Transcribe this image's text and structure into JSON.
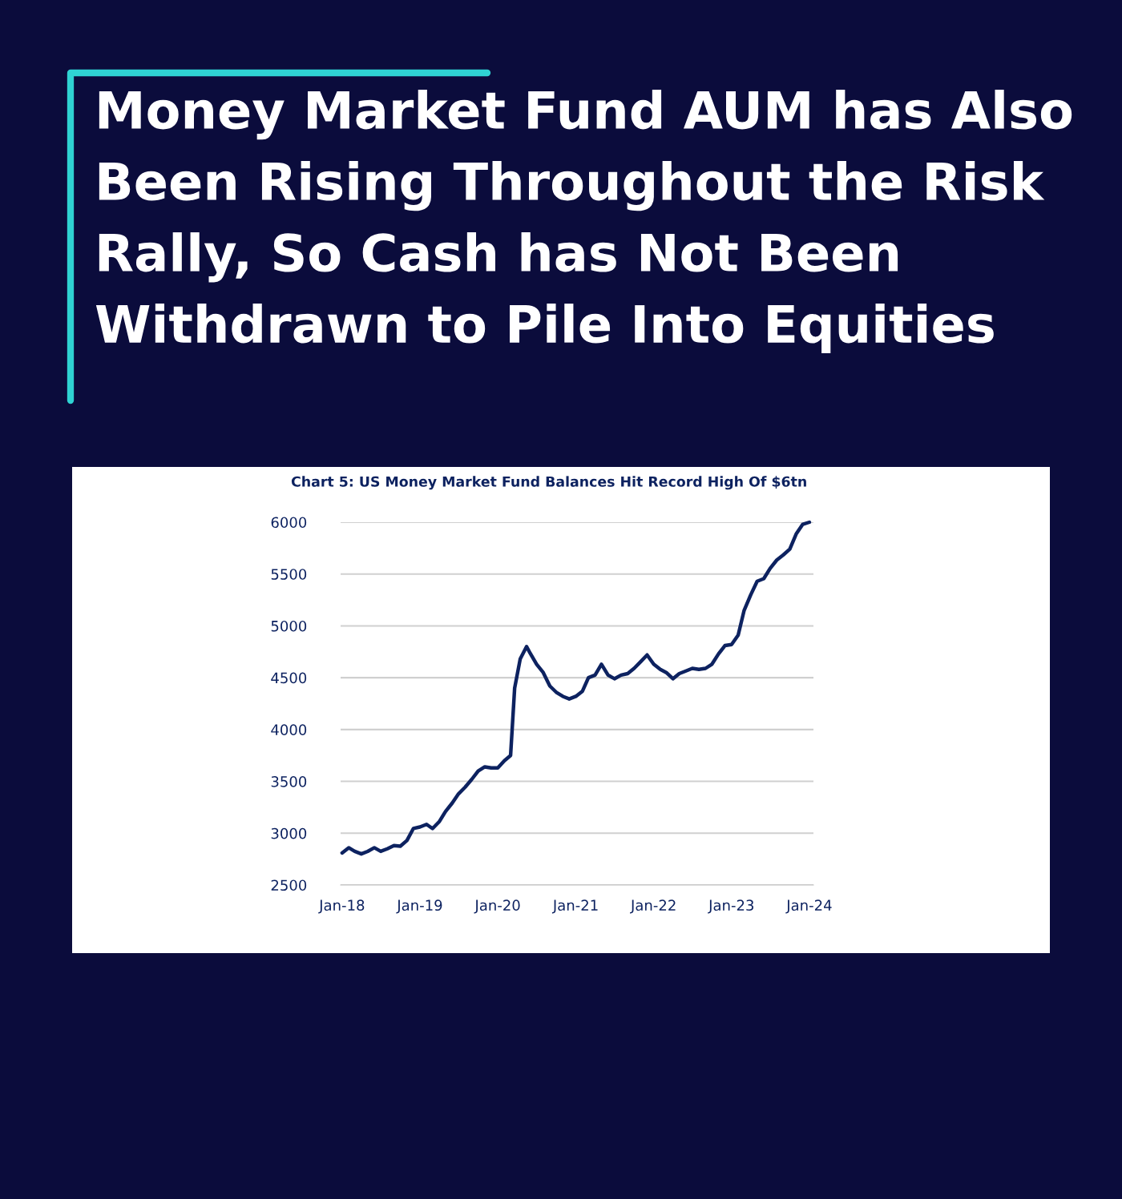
{
  "chart_data": {
    "type": "line",
    "title": "Money Market Fund AUM has Also Been Rising Throughout the Risk Rally, So Cash has Not Been Withdrawn to Pile Into Equities",
    "subtitle": "Chart 5: US Money Market Fund Balances Hit Record High Of $6tn",
    "series": [
      {
        "color": "#0d2260",
        "x": [
          "2018-01",
          "2018-02",
          "2018-03",
          "2018-04",
          "2018-05",
          "2018-06",
          "2018-07",
          "2018-08",
          "2018-09",
          "2018-10",
          "2018-11",
          "2018-12",
          "2019-01",
          "2019-02",
          "2019-03",
          "2019-04",
          "2019-05",
          "2019-06",
          "2019-07",
          "2019-08",
          "2019-09",
          "2019-10",
          "2019-11",
          "2019-12",
          "2020-01",
          "2020-02",
          "2020-03-01",
          "2020-03-20",
          "2020-04-15",
          "2020-05-15",
          "2020-06",
          "2020-07",
          "2020-08",
          "2020-09",
          "2020-10",
          "2020-11",
          "2020-12",
          "2021-01",
          "2021-02",
          "2021-03",
          "2021-04",
          "2021-05",
          "2021-06",
          "2021-07",
          "2021-08",
          "2021-09",
          "2021-10",
          "2021-11",
          "2021-12",
          "2022-01",
          "2022-02",
          "2022-03",
          "2022-04",
          "2022-05",
          "2022-06",
          "2022-07",
          "2022-08",
          "2022-09",
          "2022-10",
          "2022-11",
          "2022-12",
          "2023-01",
          "2023-02",
          "2023-03",
          "2023-04",
          "2023-05",
          "2023-06",
          "2023-07",
          "2023-08",
          "2023-09",
          "2023-10",
          "2023-11",
          "2023-12",
          "2024-01"
        ],
        "values": [
          2810,
          2860,
          2825,
          2800,
          2825,
          2860,
          2825,
          2850,
          2880,
          2875,
          2930,
          3045,
          3060,
          3085,
          3045,
          3110,
          3210,
          3290,
          3380,
          3445,
          3520,
          3600,
          3640,
          3630,
          3630,
          3700,
          3750,
          4400,
          4680,
          4800,
          4735,
          4630,
          4550,
          4420,
          4360,
          4320,
          4295,
          4320,
          4370,
          4500,
          4525,
          4630,
          4525,
          4490,
          4525,
          4540,
          4590,
          4655,
          4720,
          4630,
          4580,
          4550,
          4490,
          4540,
          4565,
          4590,
          4580,
          4590,
          4630,
          4730,
          4810,
          4820,
          4910,
          5150,
          5300,
          5430,
          5455,
          5555,
          5635,
          5685,
          5740,
          5890,
          5980,
          6000
        ]
      }
    ],
    "xlim": [
      "2017-12-25",
      "2024-01-20"
    ],
    "xticks": [
      {
        "value": "2018-01-01",
        "label": "Jan-18"
      },
      {
        "value": "2019-01-01",
        "label": "Jan-19"
      },
      {
        "value": "2020-01-01",
        "label": "Jan-20"
      },
      {
        "value": "2021-01-01",
        "label": "Jan-21"
      },
      {
        "value": "2022-01-01",
        "label": "Jan-22"
      },
      {
        "value": "2023-01-01",
        "label": "Jan-23"
      },
      {
        "value": "2024-01-01",
        "label": "Jan-24"
      }
    ],
    "ylim": [
      2500,
      6000
    ],
    "yticks": [
      2500,
      3000,
      3500,
      4000,
      4500,
      5000,
      5500,
      6000
    ],
    "grid": "y",
    "marker": "none",
    "line_style": "solid"
  }
}
